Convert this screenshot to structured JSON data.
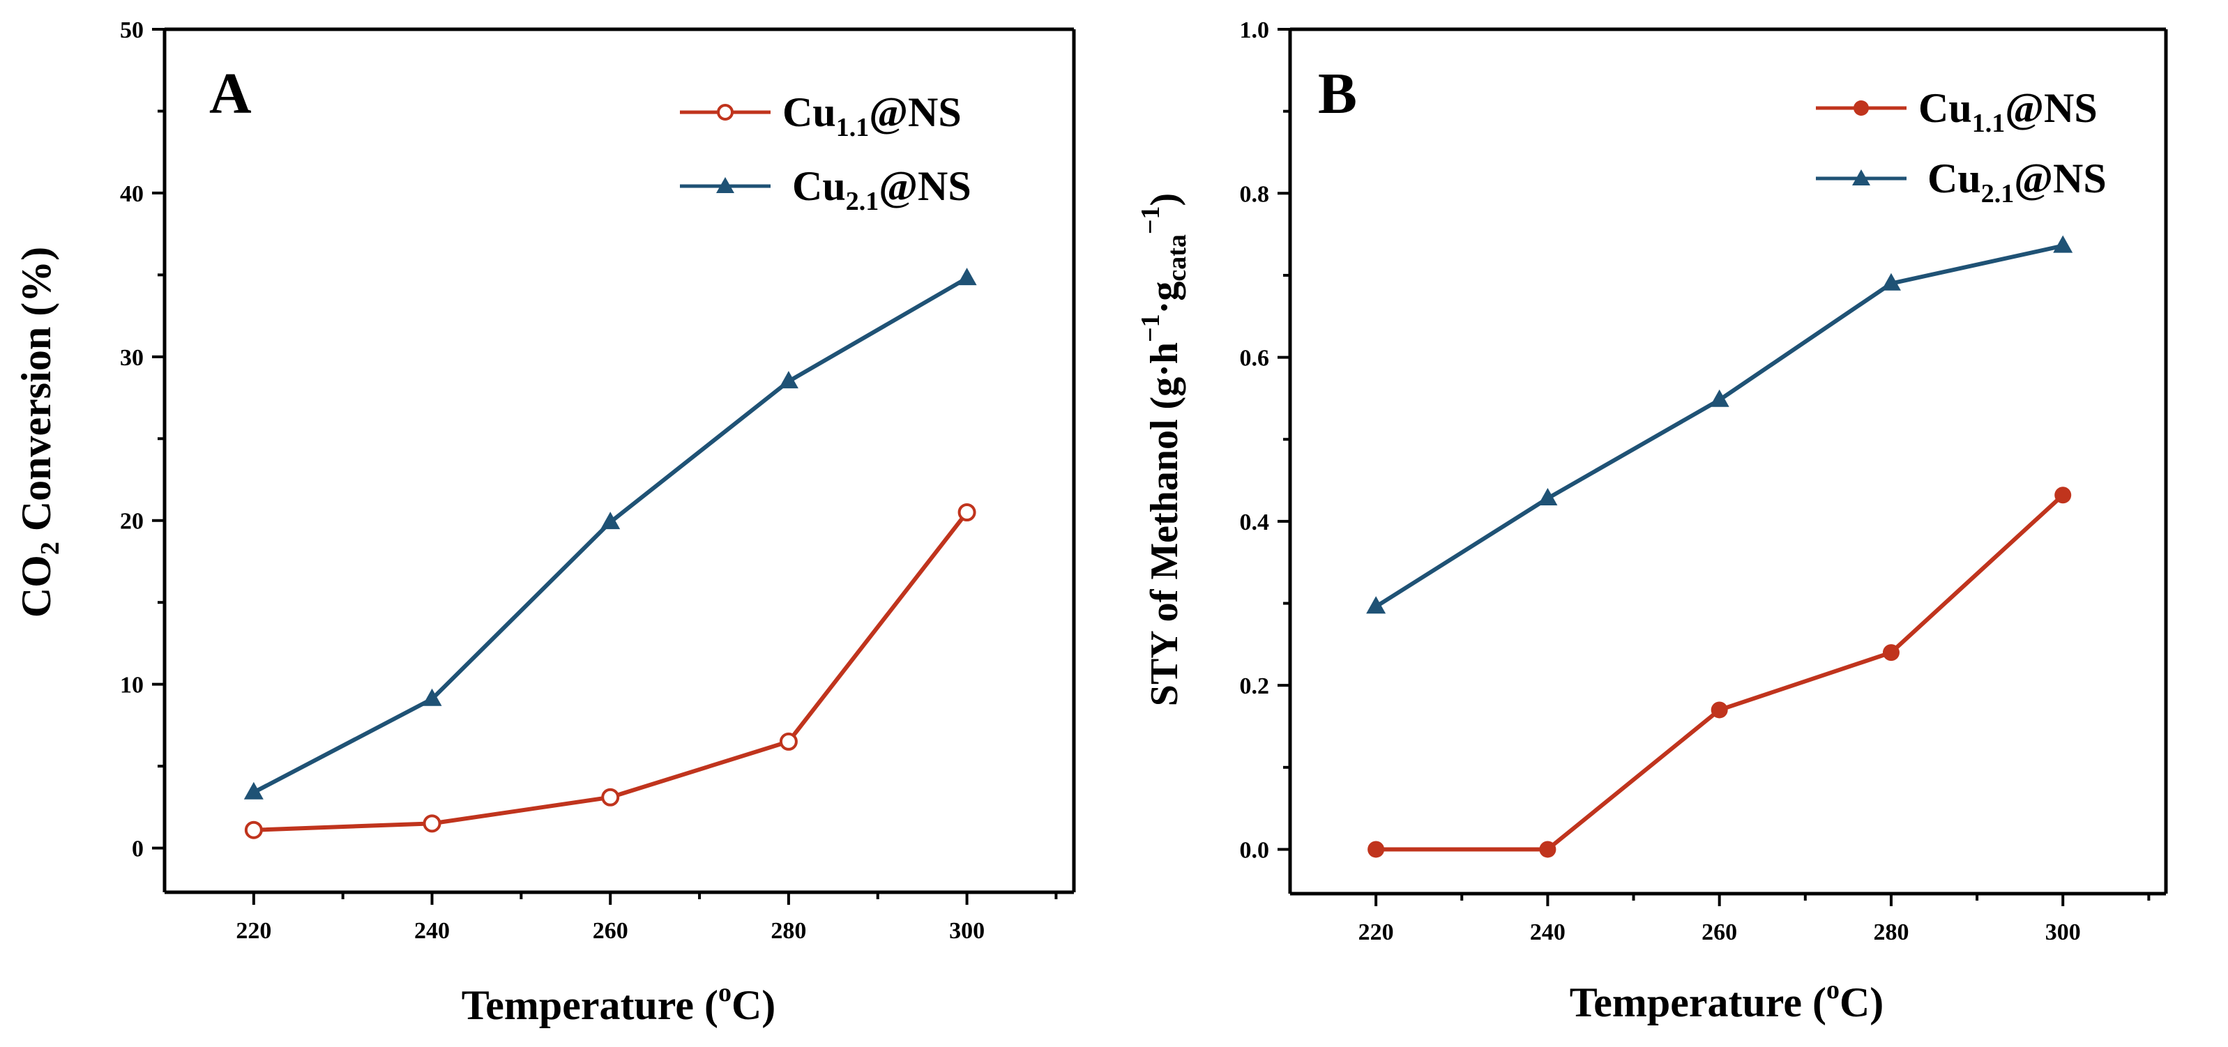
{
  "figure": {
    "colors": {
      "series1": "#c0341d",
      "series2": "#1f5275"
    }
  },
  "chart_data": [
    {
      "type": "line",
      "panel": "A",
      "xlabel": "Temperature (oC)",
      "ylabel": "CO2 Conversion (%)",
      "xlim": [
        210,
        312
      ],
      "ylim": [
        -2.7,
        50
      ],
      "xticks": [
        220,
        240,
        260,
        280,
        300
      ],
      "yticks": [
        0,
        10,
        20,
        30,
        40,
        50
      ],
      "ytick_labels": [
        "0",
        "10",
        "20",
        "30",
        "40",
        "50"
      ],
      "legend_position": "top-right",
      "x": [
        220,
        240,
        260,
        280,
        300
      ],
      "series": [
        {
          "name": "Cu1.1@NS",
          "base": "Cu",
          "sub": "1.1",
          "suffix": "@NS",
          "marker": "open-circle",
          "values": [
            1.1,
            1.5,
            3.1,
            6.5,
            20.5
          ]
        },
        {
          "name": "Cu2.1@NS",
          "base": "Cu",
          "sub": "2.1",
          "suffix": "@NS",
          "marker": "triangle",
          "values": [
            3.4,
            9.1,
            19.9,
            28.5,
            34.8
          ]
        }
      ]
    },
    {
      "type": "line",
      "panel": "B",
      "xlabel": "Temperature (oC)",
      "ylabel": "STY of Methanol (g·h−1·gcata−1)",
      "xlim": [
        210,
        312
      ],
      "ylim": [
        -0.054,
        1.0
      ],
      "xticks": [
        220,
        240,
        260,
        280,
        300
      ],
      "yticks": [
        0,
        0.2,
        0.4,
        0.6,
        0.8,
        1.0
      ],
      "ytick_labels": [
        "0.0",
        "0.2",
        "0.4",
        "0.6",
        "0.8",
        "1.0"
      ],
      "legend_position": "top-right",
      "x": [
        220,
        240,
        260,
        280,
        300
      ],
      "series": [
        {
          "name": "Cu1.1@NS",
          "base": "Cu",
          "sub": "1.1",
          "suffix": "@NS",
          "marker": "filled-circle",
          "values": [
            0.0,
            0.0,
            0.17,
            0.24,
            0.432
          ]
        },
        {
          "name": "Cu2.1@NS",
          "base": "Cu",
          "sub": "2.1",
          "suffix": "@NS",
          "marker": "triangle",
          "values": [
            0.296,
            0.428,
            0.548,
            0.69,
            0.736
          ]
        }
      ]
    }
  ]
}
